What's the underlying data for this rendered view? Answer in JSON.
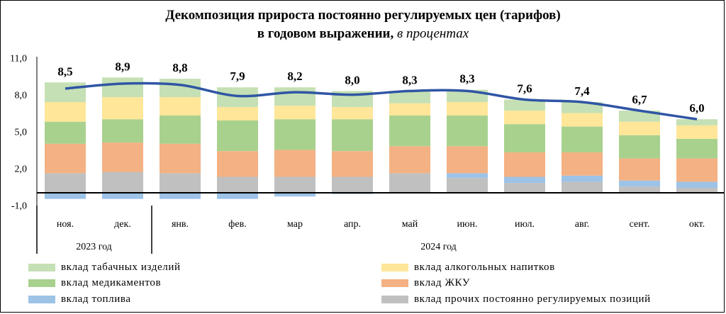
{
  "title_line1": "Декомпозиция прироста постоянно регулируемых цен (тарифов)",
  "title_line2_main": "в годовом выражении,",
  "title_line2_unit": "в процентах",
  "chart_data": {
    "type": "bar",
    "stacked": true,
    "categories": [
      "ноя.",
      "дек.",
      "янв.",
      "фев.",
      "мар",
      "апр.",
      "май",
      "июн.",
      "июл.",
      "авг.",
      "сент.",
      "окт."
    ],
    "year_groups": [
      {
        "label": "2023 год",
        "start": 0,
        "end": 1
      },
      {
        "label": "2024 год",
        "start": 2,
        "end": 11
      }
    ],
    "yticks": [
      "11,0",
      "8,0",
      "5,0",
      "2,0",
      "-1,0"
    ],
    "ylim": [
      -1,
      11
    ],
    "series": [
      {
        "name": "вклад прочих постоянно регулируемых  позиций",
        "color": "#c0c0c0",
        "values": [
          1.6,
          1.7,
          1.6,
          1.3,
          1.3,
          1.3,
          1.6,
          1.2,
          0.8,
          0.9,
          0.5,
          0.4
        ]
      },
      {
        "name": "вклад топлива",
        "color": "#9dc3e6",
        "values": [
          -0.5,
          -0.5,
          -0.5,
          -0.5,
          -0.3,
          -0.1,
          0.0,
          0.4,
          0.5,
          0.5,
          0.5,
          0.5
        ]
      },
      {
        "name": "вклад ЖКУ",
        "color": "#f4b183",
        "values": [
          2.4,
          2.4,
          2.4,
          2.1,
          2.2,
          2.1,
          2.2,
          2.2,
          2.0,
          1.9,
          1.8,
          1.9
        ]
      },
      {
        "name": "вклад медикаментов",
        "color": "#a9d18e",
        "values": [
          1.8,
          1.9,
          2.3,
          2.5,
          2.5,
          2.6,
          2.5,
          2.5,
          2.3,
          2.1,
          1.9,
          1.6
        ]
      },
      {
        "name": "вклад алкогольных напитков",
        "color": "#ffe699",
        "values": [
          1.6,
          1.8,
          1.5,
          1.1,
          1.1,
          1.0,
          1.0,
          1.1,
          1.1,
          1.1,
          1.1,
          1.1
        ]
      },
      {
        "name": "вклад табачных изделий",
        "color": "#c5e0b4",
        "values": [
          1.6,
          1.6,
          1.5,
          1.6,
          1.5,
          1.3,
          1.0,
          1.0,
          0.9,
          0.9,
          0.9,
          0.5
        ]
      }
    ],
    "line": {
      "color": "#2f55a4",
      "values": [
        8.5,
        8.9,
        8.8,
        7.9,
        8.2,
        8.0,
        8.3,
        8.3,
        7.6,
        7.4,
        6.7,
        6.0
      ]
    },
    "data_labels": [
      "8,5",
      "8,9",
      "8,8",
      "7,9",
      "8,2",
      "8,0",
      "8,3",
      "8,3",
      "7,6",
      "7,4",
      "6,7",
      "6,0"
    ],
    "legend": [
      {
        "label": "вклад табачных изделий",
        "color": "#c5e0b4"
      },
      {
        "label": "вклад алкогольных напитков",
        "color": "#ffe699"
      },
      {
        "label": "вклад медикаментов",
        "color": "#a9d18e"
      },
      {
        "label": "вклад ЖКУ",
        "color": "#f4b183"
      },
      {
        "label": "вклад топлива",
        "color": "#9dc3e6"
      },
      {
        "label": "вклад прочих постоянно регулируемых  позиций",
        "color": "#c0c0c0"
      }
    ]
  }
}
